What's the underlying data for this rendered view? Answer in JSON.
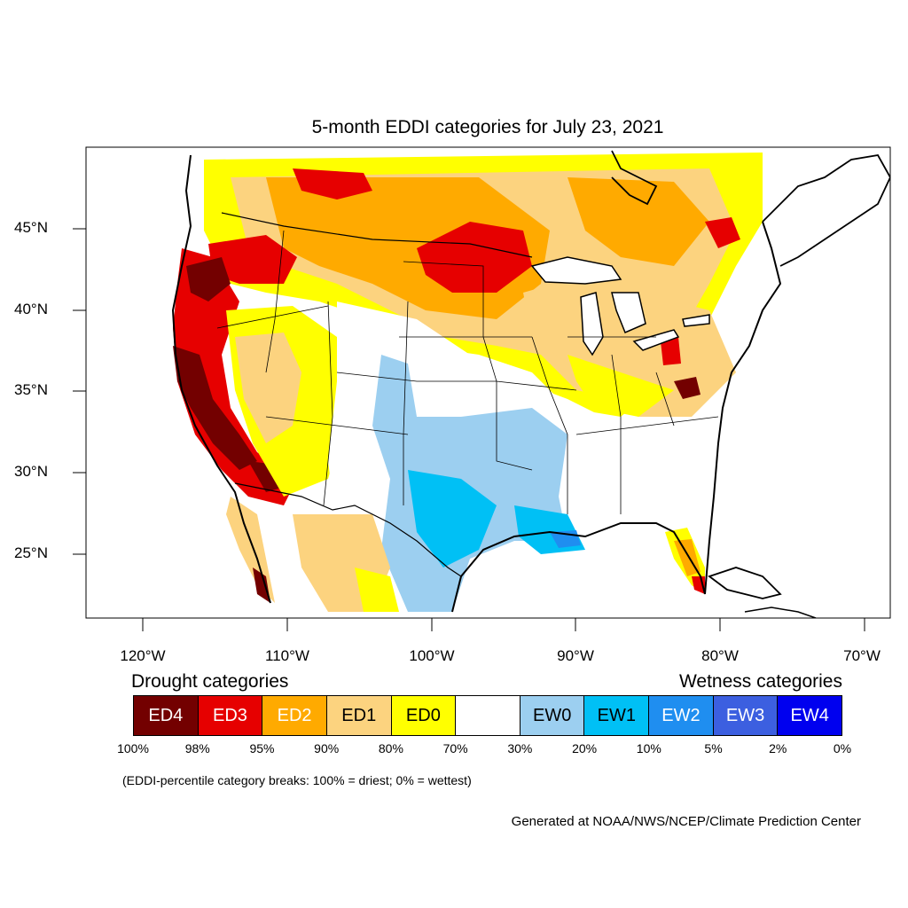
{
  "title": "5-month EDDI categories for July 23, 2021",
  "lat_labels": [
    "45°N",
    "40°N",
    "35°N",
    "30°N",
    "25°N"
  ],
  "lon_labels": [
    "120°W",
    "110°W",
    "100°W",
    "90°W",
    "80°W",
    "70°W"
  ],
  "legend": {
    "drought_heading": "Drought categories",
    "wetness_heading": "Wetness categories",
    "categories": [
      {
        "label": "ED4",
        "color": "#730000",
        "text_color": "#ffffff"
      },
      {
        "label": "ED3",
        "color": "#e60000",
        "text_color": "#ffffff"
      },
      {
        "label": "ED2",
        "color": "#ffaa00",
        "text_color": "#ffffff"
      },
      {
        "label": "ED1",
        "color": "#fcd37f",
        "text_color": "#000000"
      },
      {
        "label": "ED0",
        "color": "#ffff00",
        "text_color": "#000000"
      },
      {
        "label": "",
        "color": "#ffffff",
        "text_color": "#000000"
      },
      {
        "label": "EW0",
        "color": "#9ccff0",
        "text_color": "#000000"
      },
      {
        "label": "EW1",
        "color": "#00c0f5",
        "text_color": "#000000"
      },
      {
        "label": "EW2",
        "color": "#1f8ef0",
        "text_color": "#ffffff"
      },
      {
        "label": "EW3",
        "color": "#3c5fe0",
        "text_color": "#ffffff"
      },
      {
        "label": "EW4",
        "color": "#0000ef",
        "text_color": "#ffffff"
      }
    ],
    "percentiles": [
      "100%",
      "98%",
      "95%",
      "90%",
      "80%",
      "70%",
      "30%",
      "20%",
      "10%",
      "5%",
      "2%",
      "0%"
    ]
  },
  "note": "(EDDI-percentile category breaks: 100% = driest; 0% = wettest)",
  "credit": "Generated at NOAA/NWS/NCEP/Climate Prediction Center"
}
